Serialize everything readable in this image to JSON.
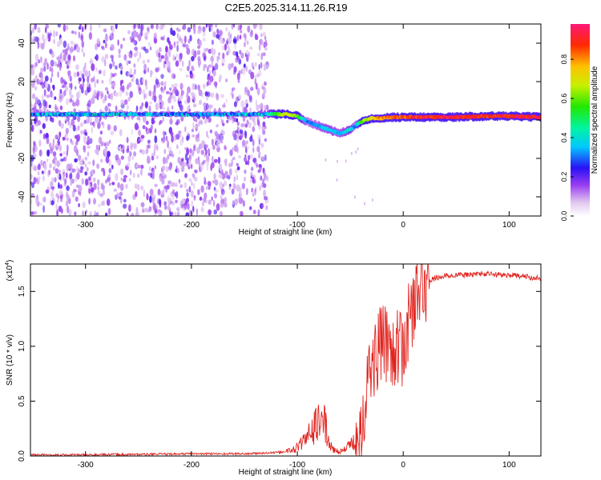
{
  "figure": {
    "title": "C2E5.2025.314.11.26.R19"
  },
  "chart_data": [
    {
      "type": "heatmap",
      "title": "C2E5.2025.314.11.26.R19",
      "xlabel": "Height of straight line (km)",
      "ylabel": "Frequency (Hz)",
      "xlim": [
        -352,
        130
      ],
      "ylim": [
        -50,
        50
      ],
      "x_ticks": [
        -300,
        -200,
        -100,
        0,
        100
      ],
      "y_ticks": [
        -40,
        -20,
        0,
        20,
        40
      ],
      "description_note": "Normalized spectral amplitude vs frequency and straight-line height; noisy purple speckle below about -128 km, coherent signal ridge tracked to the right",
      "noise_region_x": [
        -352,
        -128
      ],
      "ridge": {
        "x": [
          -350,
          -300,
          -250,
          -200,
          -150,
          -128,
          -110,
          -100,
          -90,
          -80,
          -70,
          -60,
          -50,
          -45,
          -40,
          -30,
          -20,
          -10,
          0,
          20,
          50,
          80,
          100,
          130
        ],
        "frequency": [
          3,
          3,
          3,
          3,
          3,
          3,
          3,
          2,
          -1,
          -3,
          -5,
          -7,
          -5,
          -3,
          -1,
          1,
          1,
          1.5,
          1.5,
          1.5,
          1.5,
          2,
          2,
          1.5
        ],
        "amplitude": [
          0.35,
          0.4,
          0.35,
          0.35,
          0.35,
          0.4,
          0.75,
          0.6,
          0.3,
          0.35,
          0.4,
          0.35,
          0.45,
          0.3,
          0.6,
          0.75,
          0.85,
          0.85,
          0.9,
          0.95,
          0.95,
          0.9,
          0.95,
          0.95
        ]
      },
      "colorbar": {
        "label": "Normalized spectral amplitude",
        "ticks": [
          "0.0",
          "0.2",
          "0.4",
          "0.6",
          "0.8"
        ],
        "range": [
          0,
          0.98
        ]
      }
    },
    {
      "type": "line",
      "xlabel": "Height of straight line (km)",
      "ylabel": "SNR (10 * v/v)",
      "y_scale_label": "(x10",
      "y_scale_exp": "4",
      "xlim": [
        -352,
        130
      ],
      "ylim": [
        0,
        1.75
      ],
      "x_ticks": [
        -300,
        -200,
        -100,
        0,
        100
      ],
      "y_ticks": [
        "0.0",
        "0.5",
        "1.0",
        "1.5"
      ],
      "color": "#e0231e",
      "series": [
        {
          "name": "SNR",
          "x": [
            -352,
            -300,
            -250,
            -200,
            -150,
            -120,
            -105,
            -100,
            -95,
            -90,
            -85,
            -80,
            -75,
            -70,
            -65,
            -60,
            -55,
            -50,
            -45,
            -40,
            -35,
            -30,
            -25,
            -20,
            -15,
            -10,
            -5,
            0,
            5,
            10,
            15,
            20,
            25,
            30,
            40,
            50,
            60,
            70,
            80,
            90,
            100,
            110,
            120,
            130
          ],
          "y": [
            0.01,
            0.01,
            0.015,
            0.02,
            0.02,
            0.03,
            0.05,
            0.08,
            0.12,
            0.18,
            0.25,
            0.3,
            0.35,
            0.1,
            0.05,
            0.04,
            0.06,
            0.1,
            0.15,
            0.3,
            0.6,
            0.8,
            0.95,
            1.0,
            1.05,
            1.0,
            0.95,
            1.0,
            1.2,
            1.4,
            1.5,
            1.55,
            1.6,
            1.62,
            1.64,
            1.65,
            1.65,
            1.66,
            1.66,
            1.65,
            1.65,
            1.64,
            1.63,
            1.62
          ]
        }
      ]
    }
  ]
}
